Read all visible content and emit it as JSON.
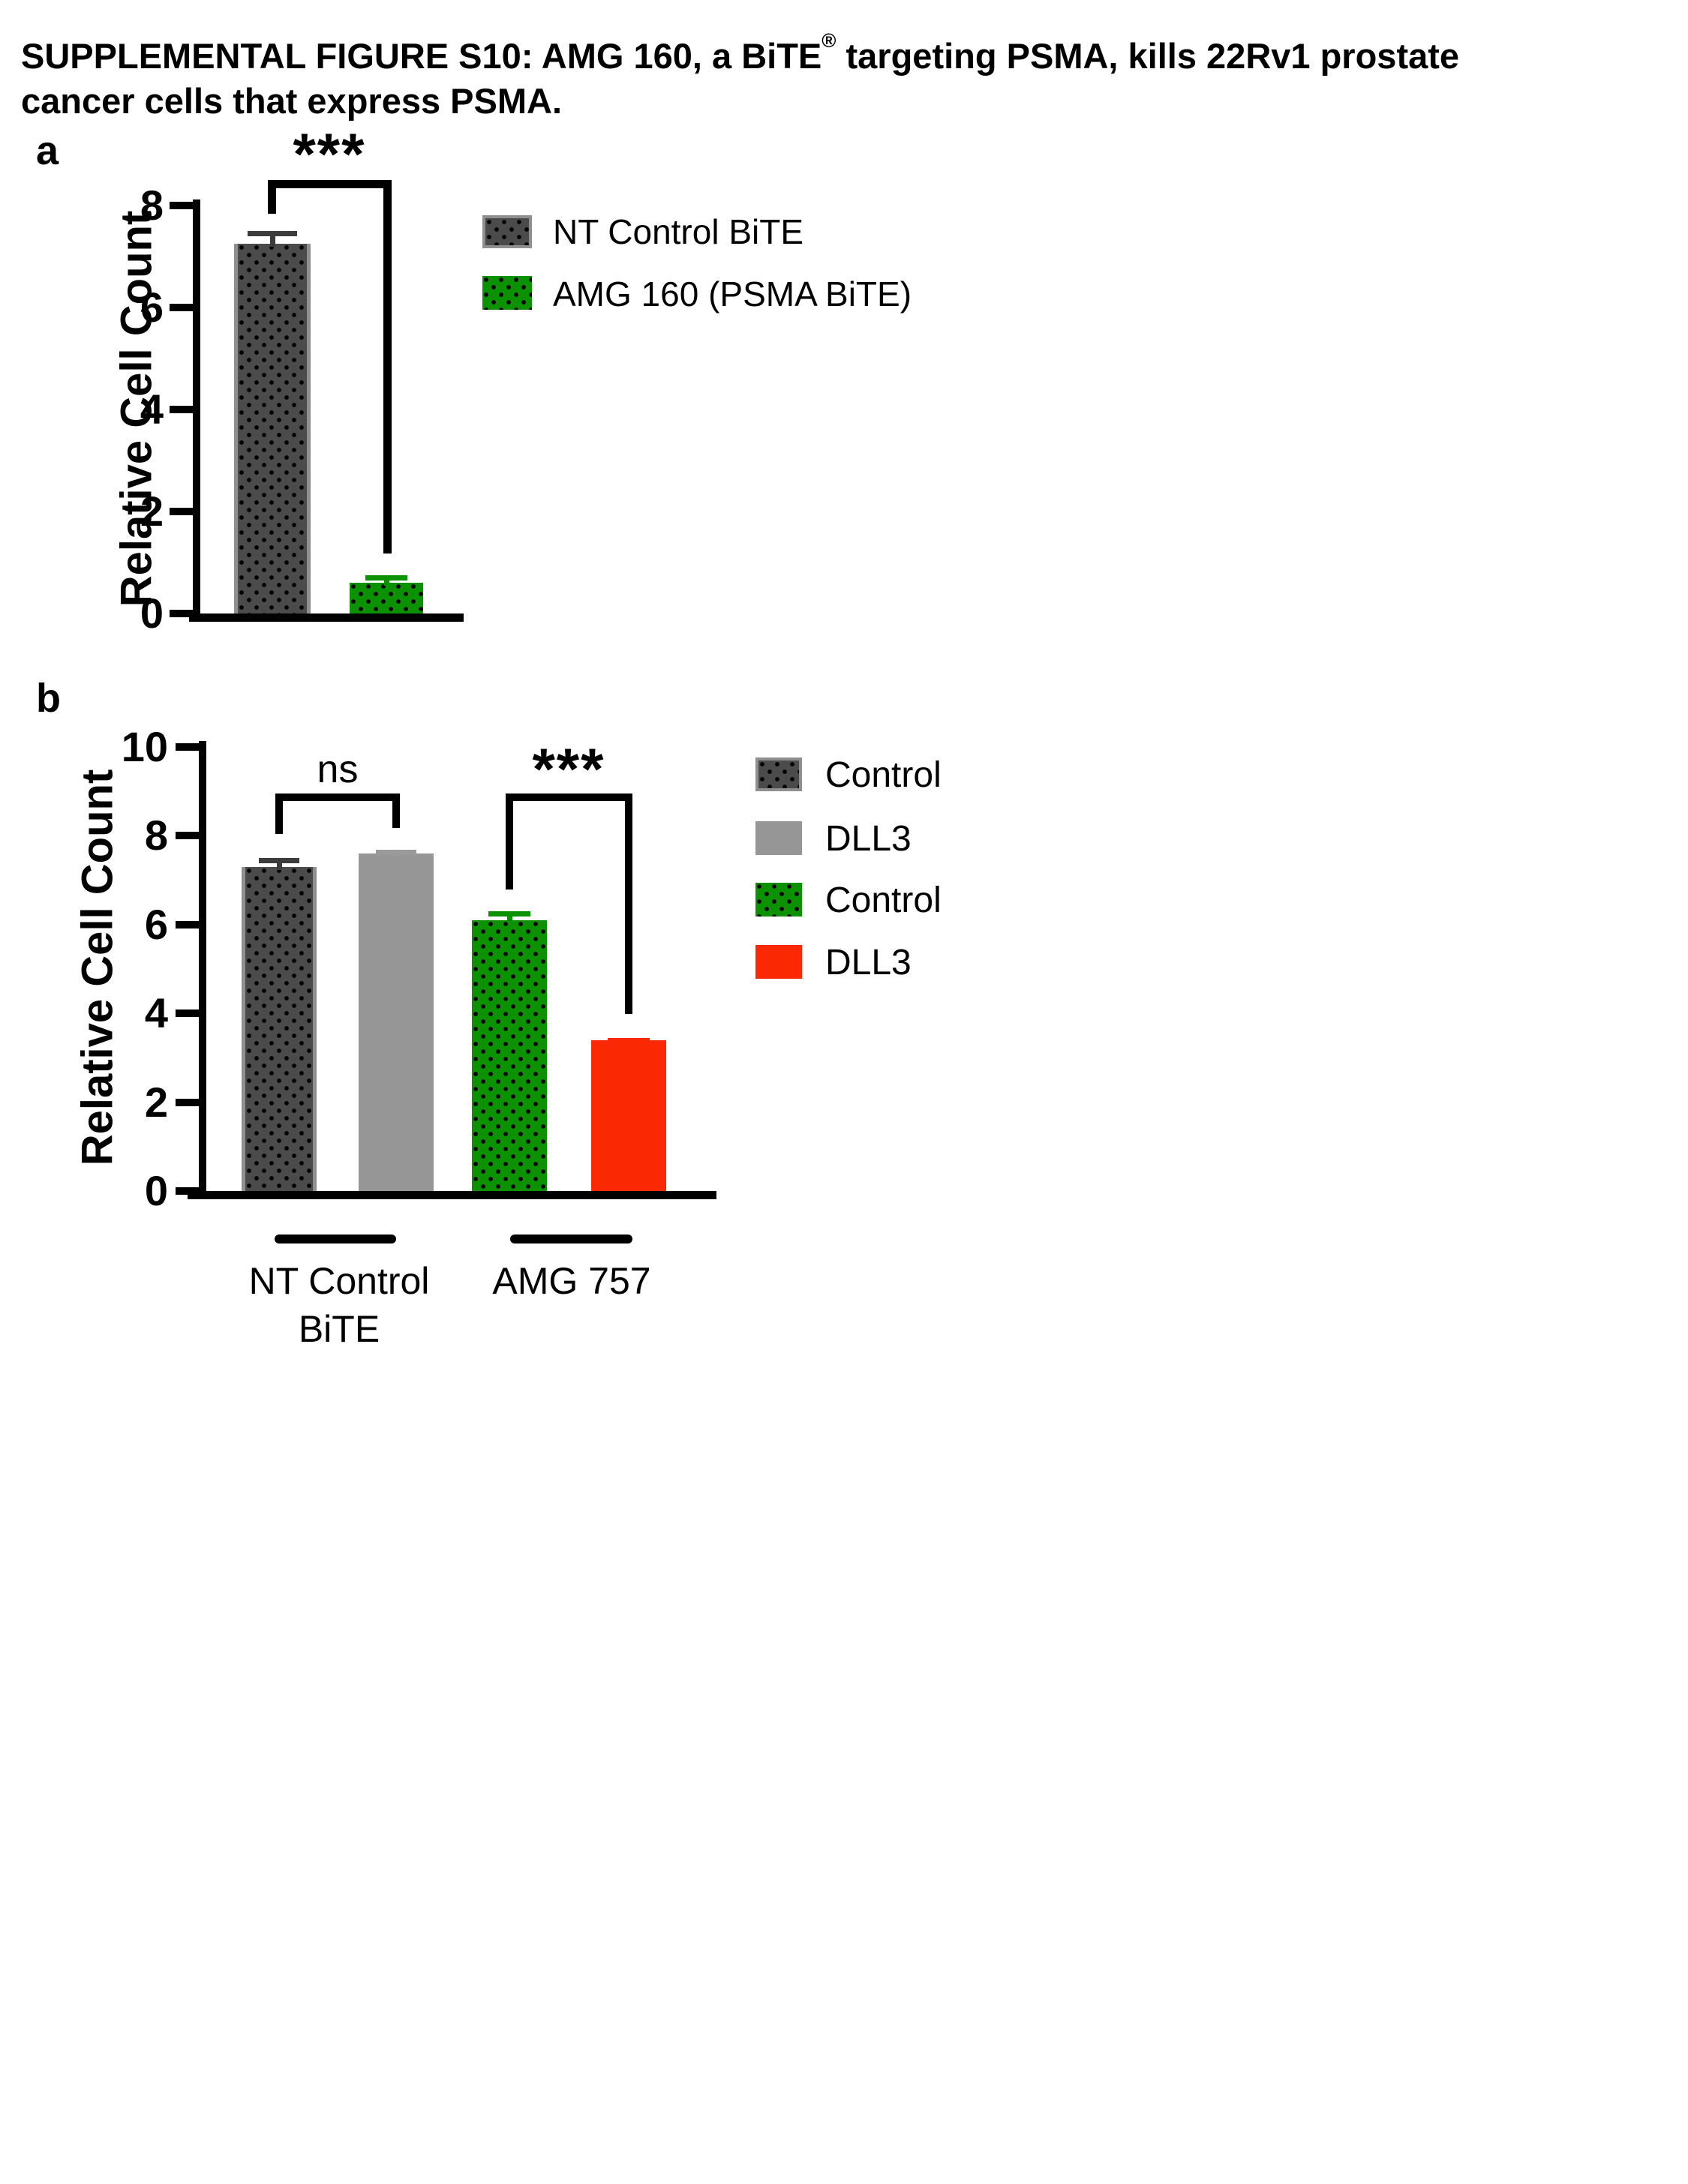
{
  "title": {
    "line1_pre": "SUPPLEMENTAL FIGURE S10: AMG 160, a BiTE",
    "registered_mark": "®",
    "line1_post": " targeting PSMA, kills 22Rv1 prostate",
    "line2": "cancer cells that express PSMA."
  },
  "panel_a": {
    "label": "a",
    "ylabel": "Relative Cell Count",
    "yticks": [
      "8",
      "6",
      "4",
      "2",
      "0"
    ],
    "significance": "***",
    "legend": [
      {
        "label": "NT Control BiTE",
        "swatch": "dark-gray-dotted",
        "color": "#4b4b4b"
      },
      {
        "label": "AMG 160 (PSMA BiTE)",
        "swatch": "green-dotted",
        "color": "#0c9201"
      }
    ]
  },
  "panel_b": {
    "label": "b",
    "ylabel": "Relative Cell Count",
    "yticks": [
      "10",
      "8",
      "6",
      "4",
      "2",
      "0"
    ],
    "sig_left": "ns",
    "sig_right": "***",
    "groups": [
      {
        "line1": "NT Control",
        "line2": "BiTE"
      },
      {
        "line1": "AMG 757",
        "line2": ""
      }
    ],
    "legend": [
      {
        "label": "Control",
        "swatch": "dark-gray-dotted",
        "color": "#4b4b4b"
      },
      {
        "label": "DLL3",
        "swatch": "light-gray",
        "color": "#969696"
      },
      {
        "label": "Control",
        "swatch": "green-dotted",
        "color": "#0c9201"
      },
      {
        "label": "DLL3",
        "swatch": "red",
        "color": "#fb2804"
      }
    ]
  },
  "chart_data": [
    {
      "panel": "a",
      "type": "bar",
      "categories": [
        "NT Control BiTE",
        "AMG 160 (PSMA BiTE)"
      ],
      "values": [
        7.25,
        0.6
      ],
      "errors": [
        0.25,
        0.15
      ],
      "bar_colors": [
        "#4b4b4b",
        "#0c9201"
      ],
      "bar_pattern": [
        "black-dots",
        "black-dots"
      ],
      "ylabel": "Relative Cell Count",
      "ylim": [
        0,
        8
      ],
      "yticks": [
        0,
        2,
        4,
        6,
        8
      ],
      "grid": false,
      "legend_position": "right",
      "annotations": [
        {
          "text": "***",
          "between": [
            "NT Control BiTE",
            "AMG 160 (PSMA BiTE)"
          ]
        }
      ]
    },
    {
      "panel": "b",
      "type": "bar",
      "categories": [
        "NT Control BiTE",
        "AMG 757"
      ],
      "series": [
        {
          "name": "Control",
          "values": [
            7.3,
            6.1
          ],
          "errors": [
            0.2,
            0.2
          ],
          "colors": [
            "#4b4b4b",
            "#0c9201"
          ],
          "pattern": "black-dots"
        },
        {
          "name": "DLL3",
          "values": [
            7.6,
            3.4
          ],
          "errors": [
            0.08,
            0.05
          ],
          "colors": [
            "#969696",
            "#fb2804"
          ],
          "pattern": "solid"
        }
      ],
      "ylabel": "Relative Cell Count",
      "ylim": [
        0,
        10
      ],
      "yticks": [
        0,
        2,
        4,
        6,
        8,
        10
      ],
      "grid": false,
      "legend_position": "right",
      "annotations": [
        {
          "text": "ns",
          "between": [
            "Control",
            "DLL3"
          ],
          "group": "NT Control BiTE"
        },
        {
          "text": "***",
          "between": [
            "Control",
            "DLL3"
          ],
          "group": "AMG 757"
        }
      ]
    }
  ]
}
